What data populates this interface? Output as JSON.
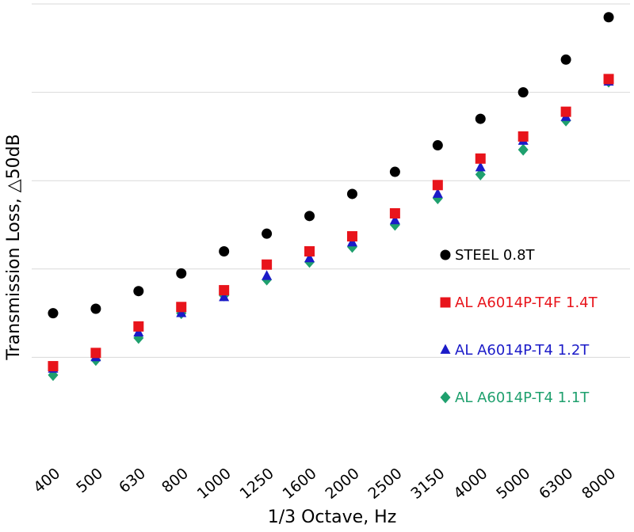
{
  "chart_data": {
    "type": "scatter",
    "title": "",
    "xlabel": "1/3 Octave, Hz",
    "ylabel": "Transmission Loss, △50dB",
    "categories": [
      "400",
      "500",
      "630",
      "800",
      "1000",
      "1250",
      "1600",
      "2000",
      "2500",
      "3150",
      "4000",
      "5000",
      "6300",
      "8000"
    ],
    "ylim": [
      0,
      5
    ],
    "grid": "horizontal",
    "legend_position": "right",
    "series": [
      {
        "name": "STEEL 0.8T",
        "color": "#000000",
        "marker": "circle",
        "values": [
          1.5,
          1.55,
          1.75,
          1.95,
          2.2,
          2.4,
          2.6,
          2.85,
          3.1,
          3.4,
          3.7,
          4.0,
          4.37,
          4.85
        ]
      },
      {
        "name": "AL A6014P-T4F 1.4T",
        "color": "#e8141b",
        "marker": "square",
        "values": [
          0.9,
          1.05,
          1.35,
          1.57,
          1.76,
          2.05,
          2.2,
          2.37,
          2.63,
          2.95,
          3.25,
          3.5,
          3.78,
          4.15
        ]
      },
      {
        "name": "AL A6014P-T4 1.2T",
        "color": "#1b1bc8",
        "marker": "triangle",
        "values": [
          0.87,
          1.0,
          1.28,
          1.5,
          1.68,
          1.92,
          2.12,
          2.3,
          2.55,
          2.85,
          3.15,
          3.45,
          3.72,
          4.12
        ]
      },
      {
        "name": "AL A6014P-T4 1.1T",
        "color": "#1fa06e",
        "marker": "diamond",
        "values": [
          0.8,
          0.97,
          1.22,
          1.5,
          1.7,
          1.88,
          2.08,
          2.25,
          2.5,
          2.8,
          3.07,
          3.35,
          3.68,
          4.12
        ]
      }
    ]
  }
}
